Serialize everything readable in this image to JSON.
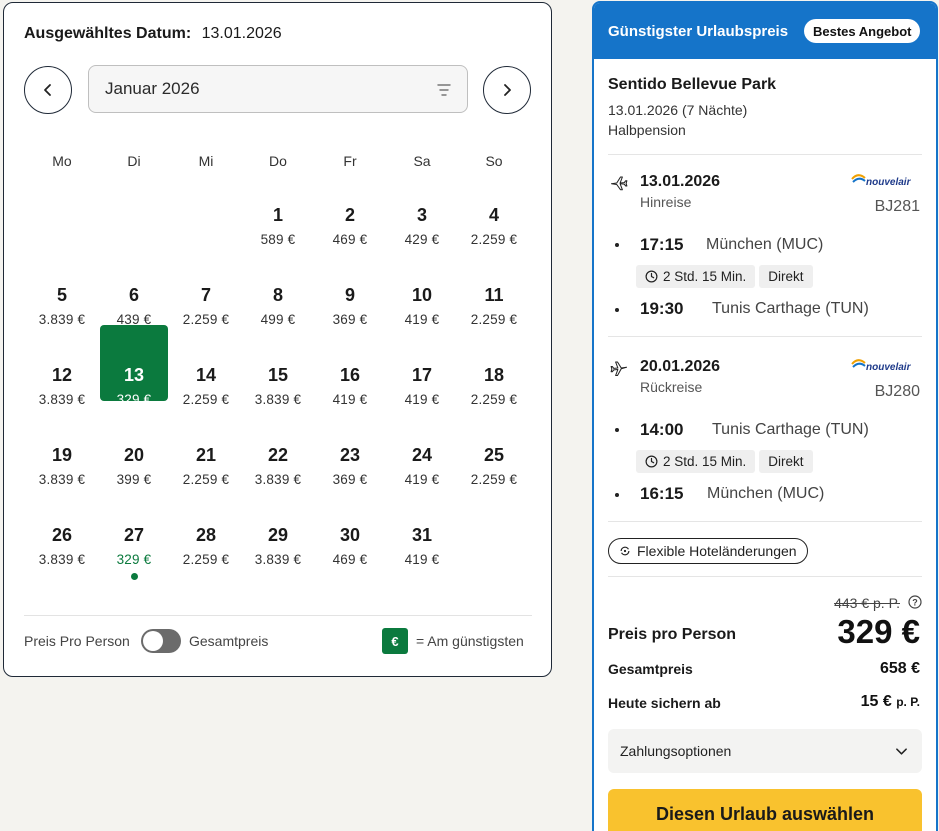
{
  "calendar": {
    "selected_label": "Ausgewähltes Datum:",
    "selected_value": "13.01.2026",
    "month": "Januar 2026",
    "weekdays": [
      "Mo",
      "Di",
      "Mi",
      "Do",
      "Fr",
      "Sa",
      "So"
    ],
    "days": [
      {
        "num": "1",
        "price": "589 €"
      },
      {
        "num": "2",
        "price": "469 €"
      },
      {
        "num": "3",
        "price": "429 €"
      },
      {
        "num": "4",
        "price": "2.259 €"
      },
      {
        "num": "5",
        "price": "3.839 €"
      },
      {
        "num": "6",
        "price": "439 €"
      },
      {
        "num": "7",
        "price": "2.259 €"
      },
      {
        "num": "8",
        "price": "499 €"
      },
      {
        "num": "9",
        "price": "369 €"
      },
      {
        "num": "10",
        "price": "419 €"
      },
      {
        "num": "11",
        "price": "2.259 €"
      },
      {
        "num": "12",
        "price": "3.839 €"
      },
      {
        "num": "13",
        "price": "329 €",
        "selected": true
      },
      {
        "num": "14",
        "price": "2.259 €"
      },
      {
        "num": "15",
        "price": "3.839 €"
      },
      {
        "num": "16",
        "price": "419 €"
      },
      {
        "num": "17",
        "price": "419 €"
      },
      {
        "num": "18",
        "price": "2.259 €"
      },
      {
        "num": "19",
        "price": "3.839 €"
      },
      {
        "num": "20",
        "price": "399 €"
      },
      {
        "num": "21",
        "price": "2.259 €"
      },
      {
        "num": "22",
        "price": "3.839 €"
      },
      {
        "num": "23",
        "price": "369 €"
      },
      {
        "num": "24",
        "price": "419 €"
      },
      {
        "num": "25",
        "price": "2.259 €"
      },
      {
        "num": "26",
        "price": "3.839 €"
      },
      {
        "num": "27",
        "price": "329 €",
        "cheapest": true
      },
      {
        "num": "28",
        "price": "2.259 €"
      },
      {
        "num": "29",
        "price": "3.839 €"
      },
      {
        "num": "30",
        "price": "469 €"
      },
      {
        "num": "31",
        "price": "419 €"
      }
    ],
    "first_weekday_offset": 3,
    "footer": {
      "per_person": "Preis Pro Person",
      "total": "Gesamtpreis",
      "euro_symbol": "€",
      "cheapest_legend": "= Am günstigsten"
    }
  },
  "offer": {
    "header_title": "Günstigster Urlaubspreis",
    "badge": "Bestes Angebot",
    "hotel_name": "Sentido Bellevue Park",
    "dates": "13.01.2026 (7 Nächte)",
    "board": "Halbpension",
    "outbound": {
      "date": "13.01.2026",
      "direction": "Hinreise",
      "airline": "nouvelair",
      "flight_no": "BJ281",
      "dep_time": "17:15",
      "dep_city": "München (MUC)",
      "duration": "2 Std. 15 Min.",
      "stops": "Direkt",
      "arr_time": "19:30",
      "arr_city": "Tunis Carthage (TUN)"
    },
    "return": {
      "date": "20.01.2026",
      "direction": "Rückreise",
      "airline": "nouvelair",
      "flight_no": "BJ280",
      "dep_time": "14:00",
      "dep_city": "Tunis Carthage (TUN)",
      "duration": "2 Std. 15 Min.",
      "stops": "Direkt",
      "arr_time": "16:15",
      "arr_city": "München (MUC)"
    },
    "flex_label": "Flexible Hoteländerungen",
    "old_price": "443 € p. P.",
    "price_per_person_label": "Preis pro Person",
    "price_per_person": "329 €",
    "total_label": "Gesamtpreis",
    "total_value": "658 €",
    "deposit_label": "Heute sichern ab",
    "deposit_value": "15 €",
    "deposit_unit": "p. P.",
    "payment_options": "Zahlungsoptionen",
    "cta": "Diesen Urlaub auswählen",
    "colors": {
      "primary": "#1574c9",
      "green": "#0b7a3e",
      "cta": "#f9c22e"
    }
  }
}
